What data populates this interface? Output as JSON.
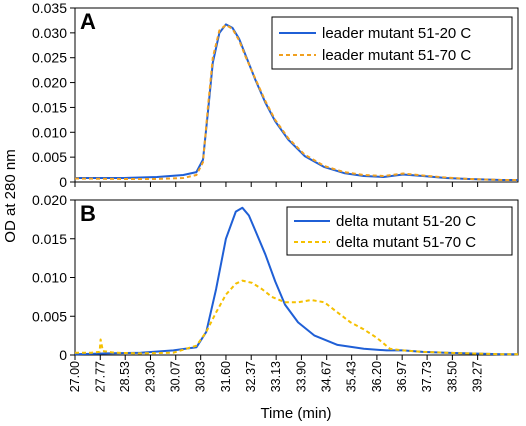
{
  "chart_data": [
    {
      "panel": "A",
      "type": "line",
      "ylim": [
        0,
        0.035
      ],
      "yticks": [
        "0.035",
        "0.030",
        "0.025",
        "0.020",
        "0.015",
        "0.010",
        "0.005",
        "0"
      ],
      "legend_position": "top-right",
      "series": [
        {
          "name": "leader mutant 51-20 C",
          "color": "#1f5fd6",
          "style": "solid",
          "x": [
            27.0,
            28.5,
            29.5,
            30.3,
            30.7,
            30.9,
            31.05,
            31.2,
            31.4,
            31.6,
            31.8,
            32.0,
            32.2,
            32.5,
            32.8,
            33.1,
            33.5,
            34.0,
            34.6,
            35.2,
            35.8,
            36.4,
            37.0,
            37.6,
            38.3,
            39.0,
            40.0,
            40.5
          ],
          "y": [
            0.0008,
            0.0008,
            0.001,
            0.0014,
            0.002,
            0.0045,
            0.014,
            0.024,
            0.03,
            0.0317,
            0.031,
            0.0288,
            0.0255,
            0.0205,
            0.016,
            0.0122,
            0.0085,
            0.0052,
            0.003,
            0.0018,
            0.0012,
            0.001,
            0.0015,
            0.0012,
            0.0008,
            0.0006,
            0.0004,
            0.0004
          ]
        },
        {
          "name": "leader mutant 51-70 C",
          "color": "#f0a020",
          "style": "dashed",
          "x": [
            27.0,
            28.5,
            29.5,
            30.3,
            30.7,
            30.9,
            31.05,
            31.2,
            31.4,
            31.6,
            31.8,
            32.0,
            32.2,
            32.5,
            32.8,
            33.1,
            33.5,
            34.0,
            34.6,
            35.2,
            35.8,
            36.4,
            37.0,
            37.6,
            38.3,
            39.0,
            40.0,
            40.5
          ],
          "y": [
            0.0007,
            0.0006,
            0.0006,
            0.0008,
            0.0014,
            0.004,
            0.015,
            0.025,
            0.0305,
            0.0316,
            0.0308,
            0.0285,
            0.0252,
            0.0207,
            0.0163,
            0.0125,
            0.0088,
            0.0055,
            0.0032,
            0.002,
            0.0014,
            0.0012,
            0.0017,
            0.0013,
            0.0009,
            0.0006,
            0.0004,
            0.0004
          ]
        }
      ]
    },
    {
      "panel": "B",
      "type": "line",
      "ylim": [
        0,
        0.02
      ],
      "yticks": [
        "0.020",
        "0.015",
        "0.010",
        "0.005",
        "0"
      ],
      "legend_position": "top-right",
      "series": [
        {
          "name": "delta mutant 51-20 C",
          "color": "#1f5fd6",
          "style": "solid",
          "x": [
            27.0,
            28.0,
            29.0,
            30.0,
            30.7,
            31.0,
            31.3,
            31.6,
            31.9,
            32.1,
            32.3,
            32.5,
            32.8,
            33.1,
            33.4,
            33.8,
            34.3,
            35.0,
            35.8,
            36.5,
            37.0,
            37.6,
            38.3,
            39.0,
            40.0,
            40.5
          ],
          "y": [
            0.0001,
            0.0002,
            0.0003,
            0.0006,
            0.001,
            0.003,
            0.0085,
            0.015,
            0.0185,
            0.019,
            0.018,
            0.016,
            0.013,
            0.0095,
            0.0065,
            0.0042,
            0.0025,
            0.0013,
            0.0008,
            0.0006,
            0.0006,
            0.0004,
            0.0003,
            0.0002,
            0.0001,
            0.0001
          ]
        },
        {
          "name": "delta mutant 51-70 C",
          "color": "#f5c000",
          "style": "dashed",
          "x": [
            27.0,
            27.5,
            27.75,
            27.78,
            27.85,
            28.2,
            29.0,
            30.0,
            30.7,
            31.0,
            31.3,
            31.6,
            31.9,
            32.1,
            32.4,
            32.7,
            33.0,
            33.4,
            33.8,
            34.2,
            34.6,
            35.0,
            35.4,
            35.8,
            36.2,
            36.6,
            37.0,
            37.6,
            38.3,
            39.0,
            40.0,
            40.5
          ],
          "y": [
            0.0003,
            0.0003,
            0.0004,
            0.002,
            0.0005,
            0.0003,
            0.0002,
            0.0003,
            0.0012,
            0.003,
            0.0055,
            0.0078,
            0.0092,
            0.0096,
            0.0093,
            0.0085,
            0.0075,
            0.0068,
            0.0068,
            0.0071,
            0.0068,
            0.0055,
            0.0042,
            0.0033,
            0.0022,
            0.0008,
            0.0006,
            0.0004,
            0.0003,
            0.0002,
            0.0001,
            0.0001
          ]
        }
      ]
    }
  ],
  "x_axis": {
    "label": "Time (min)",
    "range": [
      27.0,
      40.5
    ],
    "ticks": [
      "27.00",
      "27.77",
      "28.53",
      "29.30",
      "30.07",
      "30.83",
      "31.60",
      "32.37",
      "33.13",
      "33.90",
      "34.67",
      "35.43",
      "36.20",
      "36.97",
      "37.73",
      "38.50",
      "39.27"
    ]
  },
  "y_axis": {
    "label": "OD at 280 nm"
  }
}
